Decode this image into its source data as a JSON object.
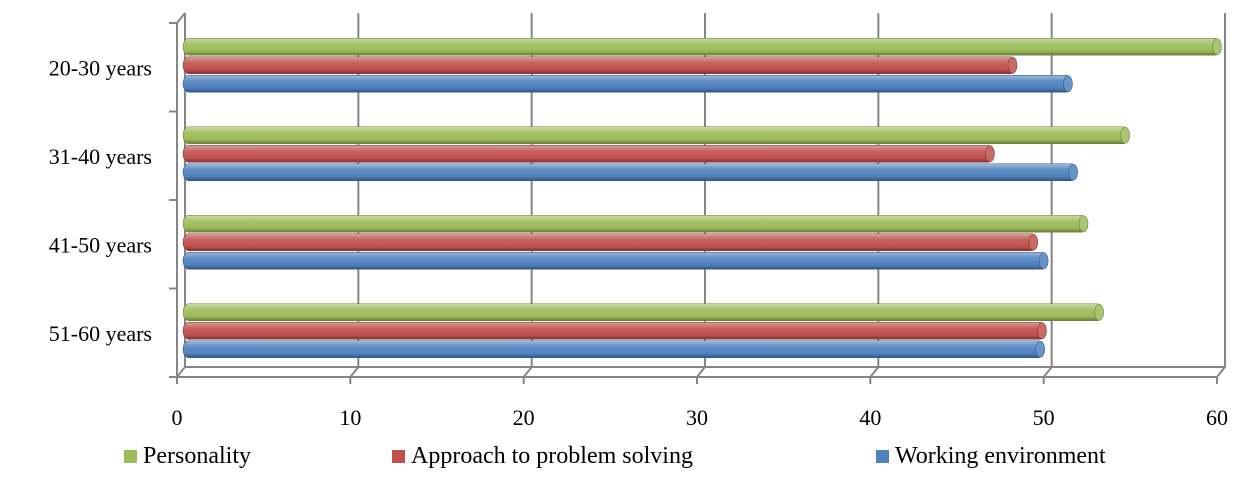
{
  "chart_data": {
    "type": "bar",
    "orientation": "horizontal",
    "style": "3d-cylinder",
    "categories": [
      "20-30 years",
      "31-40 years",
      "41-50 years",
      "51-60 years"
    ],
    "series": [
      {
        "name": "Personality",
        "color": "#9BBB59",
        "values": [
          60,
          54.7,
          52.3,
          53.2
        ]
      },
      {
        "name": "Approach to problem solving",
        "color": "#C0504D",
        "values": [
          48.2,
          46.9,
          49.4,
          49.9
        ]
      },
      {
        "name": "Working environment",
        "color": "#4F81BD",
        "values": [
          51.4,
          51.7,
          50,
          49.8
        ]
      }
    ],
    "xlim": [
      0,
      60
    ],
    "xticks": [
      "0",
      "10",
      "20",
      "30",
      "40",
      "50",
      "60"
    ],
    "grid": true,
    "legend": "bottom",
    "title": "",
    "xlabel": "",
    "ylabel": ""
  }
}
